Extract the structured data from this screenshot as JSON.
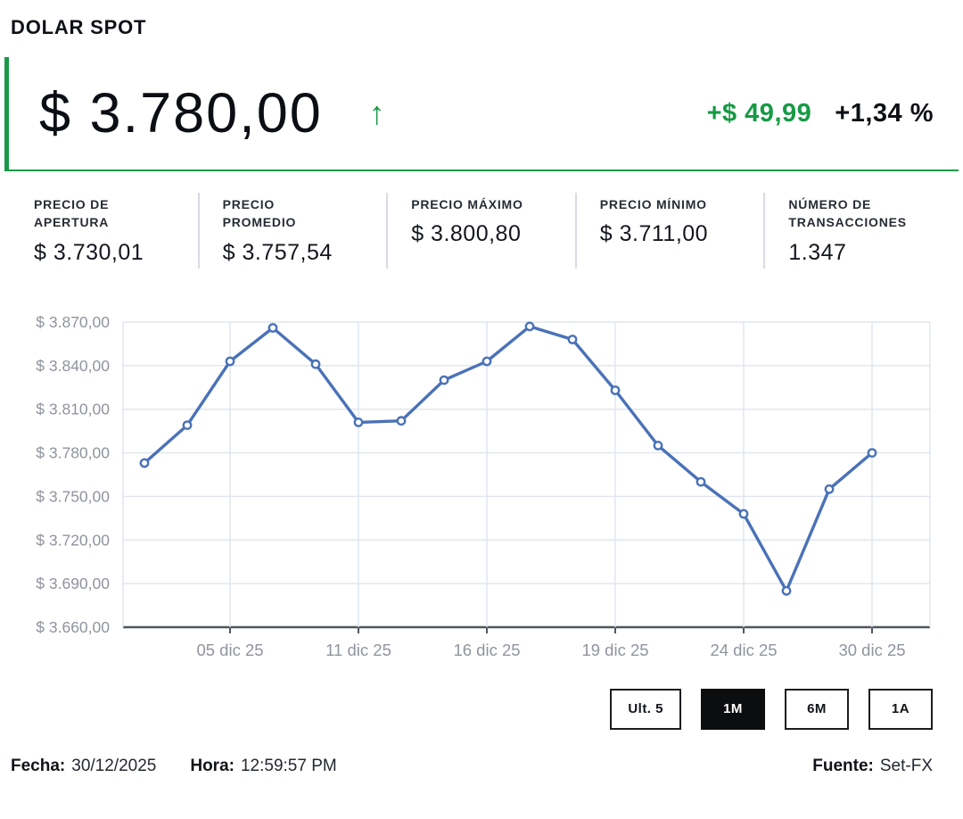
{
  "header": {
    "title": "DOLAR SPOT"
  },
  "quote": {
    "price": "$ 3.780,00",
    "direction_icon": "up-arrow",
    "change_abs": "+$ 49,99",
    "change_pct": "+1,34 %"
  },
  "stats": [
    {
      "label": "PRECIO DE\nAPERTURA",
      "value": "$ 3.730,01"
    },
    {
      "label": "PRECIO\nPROMEDIO",
      "value": "$ 3.757,54"
    },
    {
      "label": "PRECIO MÁXIMO",
      "value": "$ 3.800,80"
    },
    {
      "label": "PRECIO MÍNIMO",
      "value": "$ 3.711,00"
    },
    {
      "label": "NÚMERO DE\nTRANSACCIONES",
      "value": "1.347"
    }
  ],
  "chart_data": {
    "type": "line",
    "series": [
      {
        "name": "DOLAR SPOT (1M)",
        "values": [
          3773,
          3799,
          3843,
          3866,
          3841,
          3801,
          3802,
          3830,
          3843,
          3867,
          3858,
          3823,
          3785,
          3760,
          3738,
          3685,
          3755,
          3780
        ]
      }
    ],
    "x_tick_labels": [
      "05 dic 25",
      "11 dic 25",
      "16 dic 25",
      "19 dic 25",
      "24 dic 25",
      "30 dic 25"
    ],
    "x_tick_indices": [
      2,
      5,
      8,
      11,
      14,
      17
    ],
    "y_ticks": [
      3870,
      3840,
      3810,
      3780,
      3750,
      3720,
      3690,
      3660
    ],
    "y_tick_labels": [
      "$ 3.870,00",
      "$ 3.840,00",
      "$ 3.810,00",
      "$ 3.780,00",
      "$ 3.750,00",
      "$ 3.720,00",
      "$ 3.690,00",
      "$ 3.660,00"
    ],
    "ylim": [
      3660,
      3870
    ],
    "line_color": "#4A72B8",
    "marker": "circle-white-fill",
    "grid": true,
    "legend": "none"
  },
  "range_buttons": [
    {
      "label": "Ult. 5",
      "active": false
    },
    {
      "label": "1M",
      "active": true
    },
    {
      "label": "6M",
      "active": false
    },
    {
      "label": "1A",
      "active": false
    }
  ],
  "footer": {
    "fecha_label": "Fecha:",
    "fecha_value": "30/12/2025",
    "hora_label": "Hora:",
    "hora_value": "12:59:57 PM",
    "fuente_label": "Fuente:",
    "fuente_value": "Set-FX"
  },
  "colors": {
    "accent_green": "#189A48",
    "line_blue": "#4A72B8",
    "active_button_bg": "#0C0D0F",
    "grid": "#DFE5EF",
    "axis": "#51565E",
    "muted_text": "#8F949D"
  }
}
